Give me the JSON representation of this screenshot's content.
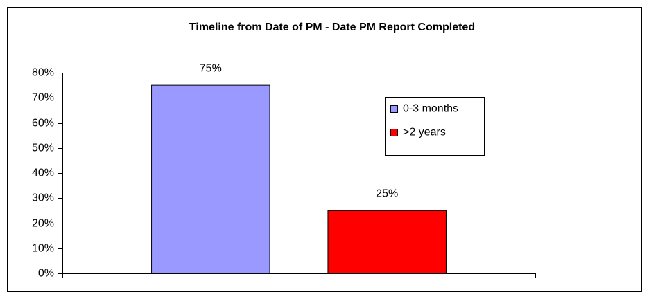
{
  "chart_data": {
    "type": "bar",
    "title": "Timeline from Date of PM - Date PM Report Completed",
    "categories": [
      null
    ],
    "series": [
      {
        "name": "0-3 months",
        "color": "#9999ff",
        "values": [
          75
        ],
        "value_labels": [
          "75%"
        ]
      },
      {
        "name": ">2 years",
        "color": "#ff0000",
        "values": [
          25
        ],
        "value_labels": [
          "25%"
        ]
      }
    ],
    "ylim": [
      0,
      80
    ],
    "yticks": [
      {
        "value": 0,
        "label": "0%"
      },
      {
        "value": 10,
        "label": "10%"
      },
      {
        "value": 20,
        "label": "20%"
      },
      {
        "value": 30,
        "label": "30%"
      },
      {
        "value": 40,
        "label": "40%"
      },
      {
        "value": 50,
        "label": "50%"
      },
      {
        "value": 60,
        "label": "60%"
      },
      {
        "value": 70,
        "label": "70%"
      },
      {
        "value": 80,
        "label": "80%"
      }
    ],
    "grid": false,
    "legend": "right"
  }
}
